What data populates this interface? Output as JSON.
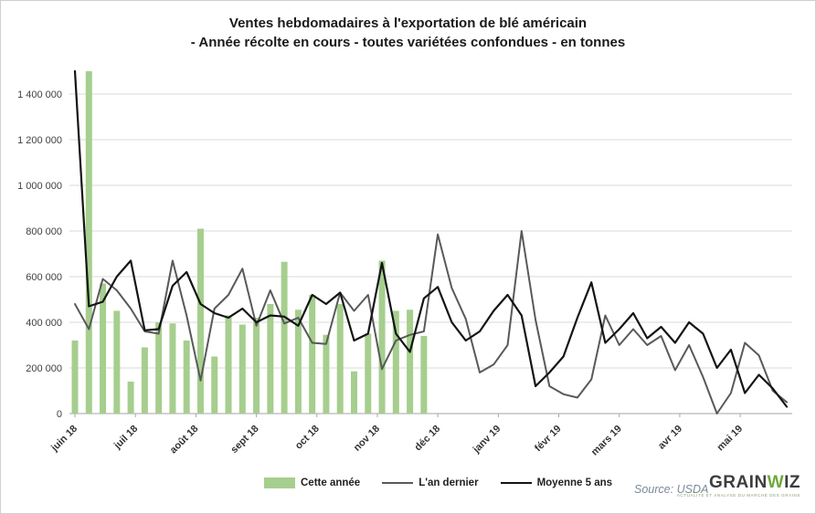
{
  "header": {
    "title_line1": "Ventes hebdomadaires à l'exportation de blé américain",
    "title_line2": "- Année récolte en cours - toutes variétées confondues - en tonnes"
  },
  "chart_data": {
    "type": "bar",
    "subtype": "combo-bar-line",
    "title": "Ventes hebdomadaires à l'exportation de blé américain - Année récolte en cours - toutes variétées confondues - en tonnes",
    "xlabel": "",
    "ylabel": "",
    "ylim": [
      0,
      1400000
    ],
    "y_tick_step": 200000,
    "y_tick_labels": [
      "0",
      "200 000",
      "400 000",
      "600 000",
      "800 000",
      "1 000 000",
      "1 200 000",
      "1 400 000"
    ],
    "x_tick_labels": [
      "juin 18",
      "juil 18",
      "août 18",
      "sept 18",
      "oct 18",
      "nov 18",
      "déc 18",
      "janv 19",
      "févr 19",
      "mars 19",
      "avr 19",
      "mai 19"
    ],
    "weeks": 52,
    "grid": "horizontal",
    "legend_position": "bottom",
    "series": [
      {
        "name": "Cette année",
        "type": "bar",
        "color": "#a6ce8e",
        "values": [
          320000,
          1500000,
          570000,
          450000,
          140000,
          290000,
          400000,
          395000,
          320000,
          810000,
          250000,
          430000,
          390000,
          420000,
          480000,
          665000,
          455000,
          520000,
          345000,
          480000,
          185000,
          350000,
          670000,
          450000,
          455000,
          340000,
          null,
          null,
          null,
          null,
          null,
          null,
          null,
          null,
          null,
          null,
          null,
          null,
          null,
          null,
          null,
          null,
          null,
          null,
          null,
          null,
          null,
          null,
          null,
          null,
          null,
          null
        ]
      },
      {
        "name": "L'an dernier",
        "type": "line",
        "color": "#595959",
        "width": 2,
        "values": [
          480000,
          370000,
          590000,
          540000,
          460000,
          360000,
          350000,
          670000,
          430000,
          145000,
          460000,
          520000,
          635000,
          385000,
          540000,
          395000,
          420000,
          310000,
          305000,
          530000,
          450000,
          520000,
          195000,
          320000,
          345000,
          360000,
          785000,
          550000,
          415000,
          180000,
          215000,
          300000,
          800000,
          410000,
          120000,
          85000,
          70000,
          150000,
          430000,
          300000,
          370000,
          300000,
          340000,
          190000,
          300000,
          160000,
          0,
          90000,
          310000,
          255000,
          100000,
          50000
        ]
      },
      {
        "name": "Moyenne 5 ans",
        "type": "line",
        "color": "#141414",
        "width": 2.2,
        "values": [
          1500000,
          470000,
          490000,
          600000,
          670000,
          365000,
          370000,
          560000,
          620000,
          480000,
          440000,
          420000,
          460000,
          400000,
          430000,
          425000,
          385000,
          520000,
          480000,
          530000,
          320000,
          350000,
          660000,
          350000,
          270000,
          505000,
          555000,
          400000,
          320000,
          360000,
          450000,
          520000,
          430000,
          120000,
          180000,
          250000,
          420000,
          575000,
          310000,
          370000,
          440000,
          330000,
          380000,
          310000,
          400000,
          350000,
          200000,
          280000,
          90000,
          170000,
          110000,
          30000
        ]
      }
    ]
  },
  "footer": {
    "source_label": "Source:",
    "source_value": "USDA"
  },
  "brand": {
    "part1": "GRAIN",
    "part2": "W",
    "part3": "IZ",
    "tagline": "ACTUALITÉ ET ANALYSE DU MARCHÉ DES GRAINS"
  }
}
